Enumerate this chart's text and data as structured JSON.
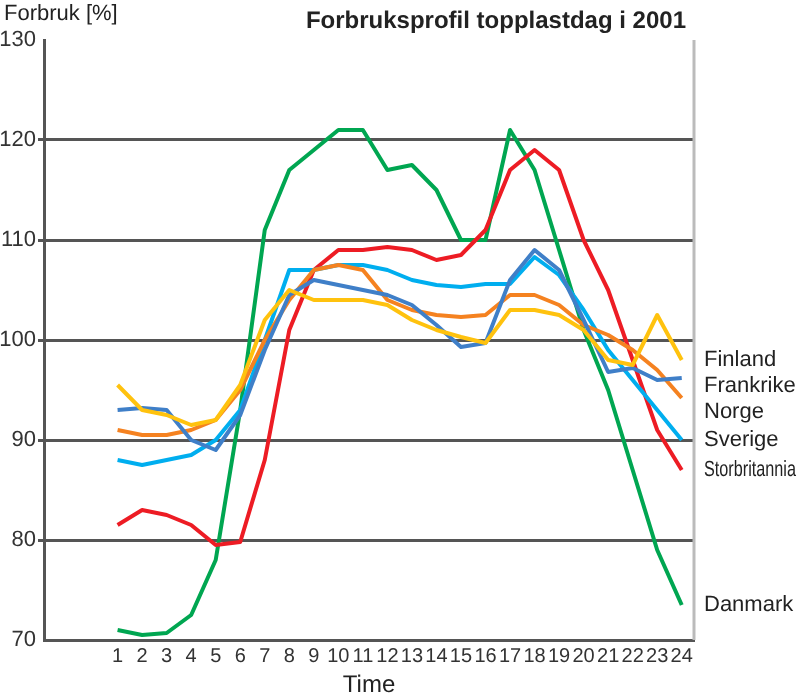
{
  "chart_data": {
    "type": "line",
    "title": "Forbruksprofil topplastdag i 2001",
    "ylabel": "Forbruk [%]",
    "xlabel": "Time",
    "x": [
      1,
      2,
      3,
      4,
      5,
      6,
      7,
      8,
      9,
      10,
      11,
      12,
      13,
      14,
      15,
      16,
      17,
      18,
      19,
      20,
      21,
      22,
      23,
      24
    ],
    "series": [
      {
        "name": "Finland",
        "color": "#ffc20e",
        "values": [
          95.5,
          93,
          92.5,
          91.5,
          92,
          95.5,
          102,
          105,
          104,
          104,
          104,
          103.5,
          102,
          101,
          100.3,
          99.7,
          103,
          103,
          102.5,
          101,
          98,
          97.5,
          102.5,
          98
        ]
      },
      {
        "name": "Frankrike",
        "color": "#3f7fc8",
        "values": [
          93,
          93.2,
          93,
          90,
          89,
          92.5,
          99,
          104.5,
          106,
          105.5,
          105,
          104.5,
          103.5,
          101.5,
          99.3,
          99.7,
          106,
          109,
          107,
          102,
          96.8,
          97.2,
          96,
          96.2
        ]
      },
      {
        "name": "Norge",
        "color": "#f58220",
        "values": [
          91,
          90.5,
          90.5,
          91,
          92,
          95,
          100,
          104,
          107,
          107.5,
          107,
          104,
          103,
          102.5,
          102.3,
          102.5,
          104.5,
          104.5,
          103.5,
          101.5,
          100.5,
          99,
          97,
          94.2
        ]
      },
      {
        "name": "Sverige",
        "color": "#00aeef",
        "values": [
          88,
          87.5,
          88,
          88.5,
          90,
          93,
          100,
          107,
          107,
          107.5,
          107.5,
          107,
          106,
          105.5,
          105.3,
          105.6,
          105.6,
          108.3,
          106.5,
          103,
          99,
          96,
          93,
          90
        ]
      },
      {
        "name": "Storbritannia",
        "color": "#ed1c24",
        "values": [
          81.5,
          83,
          82.5,
          81.5,
          79.5,
          79.8,
          88,
          101,
          107,
          109,
          109,
          109.3,
          109,
          108,
          108.5,
          111,
          117,
          119,
          117,
          110,
          105,
          98,
          91,
          87
        ]
      },
      {
        "name": "Danmark",
        "color": "#00a651",
        "values": [
          71,
          70.5,
          70.7,
          72.5,
          78,
          93,
          111,
          117,
          119,
          121,
          121,
          117,
          117.5,
          115,
          110,
          110,
          121,
          117,
          109,
          101,
          95,
          87,
          79,
          73.5
        ]
      }
    ],
    "xlim": [
      -2,
      24.5
    ],
    "xticks": [
      1,
      2,
      3,
      4,
      5,
      6,
      7,
      8,
      9,
      10,
      11,
      12,
      13,
      14,
      15,
      16,
      17,
      18,
      19,
      20,
      21,
      22,
      23,
      24
    ],
    "ylim": [
      70,
      130
    ],
    "yticks": [
      70,
      80,
      90,
      100,
      110,
      120,
      130
    ],
    "grid": "y",
    "legend": "right",
    "marker": "none",
    "line_style": "solid"
  }
}
